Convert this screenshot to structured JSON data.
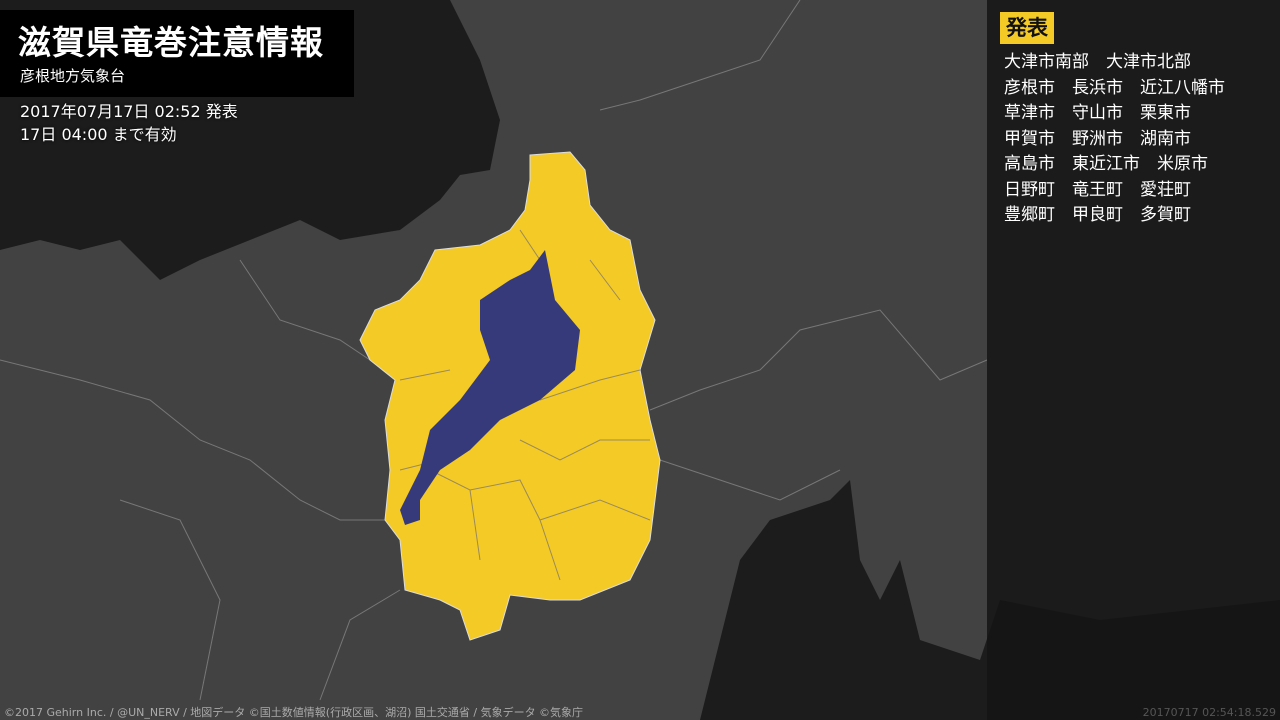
{
  "header": {
    "title": "滋賀県竜巻注意情報",
    "office": "彦根地方気象台",
    "issued": "2017年07月17日 02:52 発表",
    "valid": "17日 04:00 まで有効"
  },
  "panel": {
    "badge": "発表",
    "rows": [
      [
        "大津市南部",
        "大津市北部"
      ],
      [
        "彦根市",
        "長浜市",
        "近江八幡市"
      ],
      [
        "草津市",
        "守山市",
        "栗東市"
      ],
      [
        "甲賀市",
        "野洲市",
        "湖南市"
      ],
      [
        "高島市",
        "東近江市",
        "米原市"
      ],
      [
        "日野町",
        "竜王町",
        "愛荘町"
      ],
      [
        "豊郷町",
        "甲良町",
        "多賀町"
      ]
    ]
  },
  "footer": {
    "credit": "©2017 Gehirn Inc. / @UN_NERV / 地図データ ©国土数値情報(行政区画、湖沼) 国土交通省 / 気象データ ©気象庁",
    "timestamp": "20170717 02:54:18.529"
  },
  "colors": {
    "warning_area": "#f4ca26",
    "lake": "#363a7a",
    "land": "#424242",
    "sea": "#1c1c1c"
  }
}
